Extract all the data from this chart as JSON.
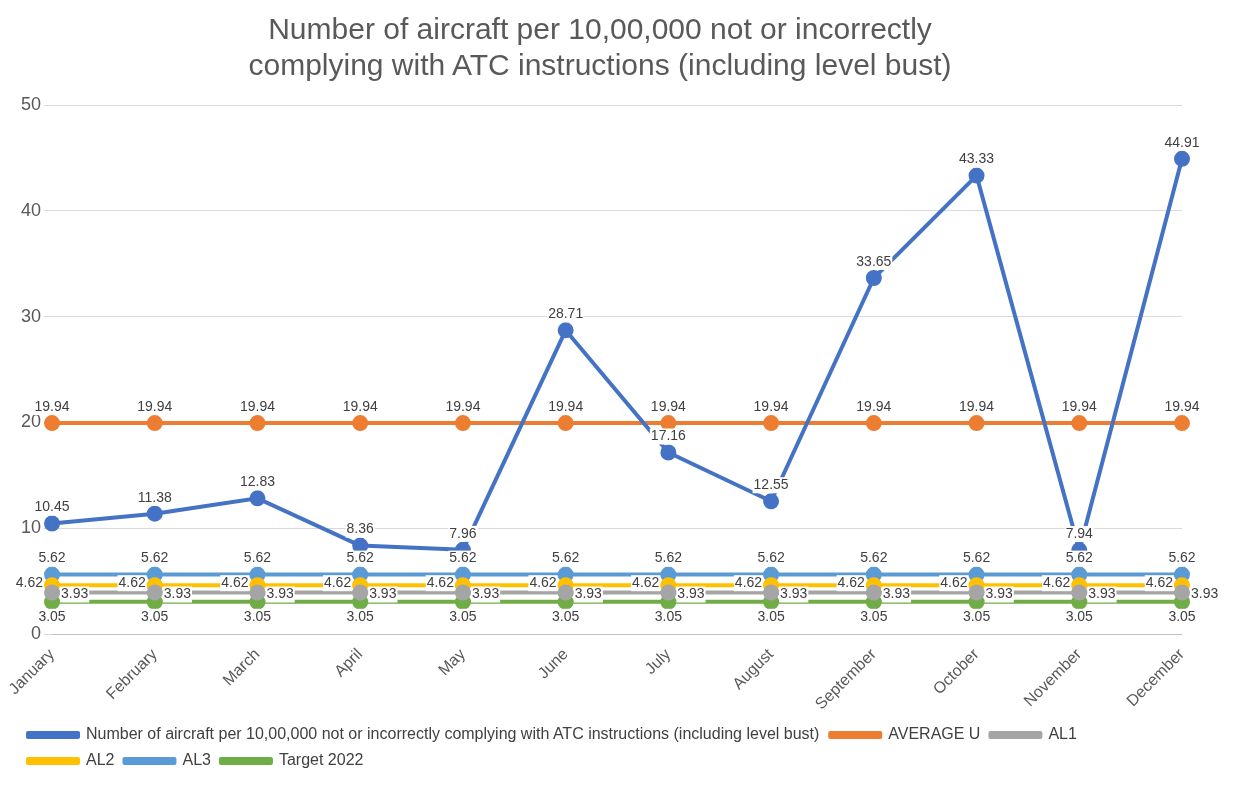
{
  "chart_data": {
    "type": "line",
    "title": "Number of aircraft per 10,00,000 not or incorrectly complying with ATC instructions (including level bust)",
    "categories": [
      "January",
      "February",
      "March",
      "April",
      "May",
      "June",
      "July",
      "August",
      "September",
      "October",
      "November",
      "December"
    ],
    "ylim": [
      0,
      50
    ],
    "yticks": [
      0,
      10,
      20,
      30,
      40,
      50
    ],
    "grid": "y",
    "legend": "bottom",
    "marker": "circle",
    "data_labels": true,
    "series": [
      {
        "name": "Number of aircraft per 10,00,000 not or incorrectly complying with ATC instructions (including level bust)",
        "color": "#4472c4",
        "values": [
          10.45,
          11.38,
          12.83,
          8.36,
          7.96,
          28.71,
          17.16,
          12.55,
          33.65,
          43.33,
          7.94,
          44.91
        ]
      },
      {
        "name": "AVERAGE U",
        "color": "#ed7d31",
        "values": [
          19.94,
          19.94,
          19.94,
          19.94,
          19.94,
          19.94,
          19.94,
          19.94,
          19.94,
          19.94,
          19.94,
          19.94
        ]
      },
      {
        "name": "AL1",
        "color": "#a5a5a5",
        "values": [
          3.93,
          3.93,
          3.93,
          3.93,
          3.93,
          3.93,
          3.93,
          3.93,
          3.93,
          3.93,
          3.93,
          3.93
        ]
      },
      {
        "name": "AL2",
        "color": "#ffc000",
        "values": [
          4.62,
          4.62,
          4.62,
          4.62,
          4.62,
          4.62,
          4.62,
          4.62,
          4.62,
          4.62,
          4.62,
          4.62
        ]
      },
      {
        "name": "AL3",
        "color": "#5b9bd5",
        "values": [
          5.62,
          5.62,
          5.62,
          5.62,
          5.62,
          5.62,
          5.62,
          5.62,
          5.62,
          5.62,
          5.62,
          5.62
        ]
      },
      {
        "name": "Target 2022",
        "color": "#70ad47",
        "values": [
          3.05,
          3.05,
          3.05,
          3.05,
          3.05,
          3.05,
          3.05,
          3.05,
          3.05,
          3.05,
          3.05,
          3.05
        ]
      }
    ]
  }
}
